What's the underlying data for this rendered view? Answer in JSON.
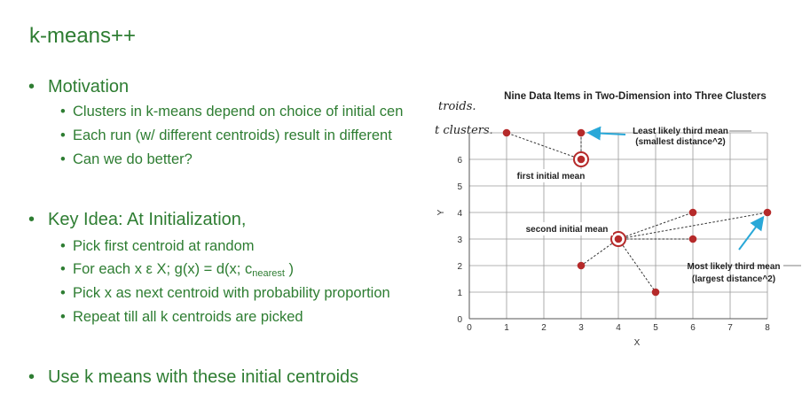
{
  "slide": {
    "title": "k-means++",
    "bullets": {
      "motivation": "Motivation",
      "m1": "Clusters in k-means depend on choice of initial cen",
      "m2": "Each run (w/ different centroids) result in different",
      "m3": "Can we do better?",
      "key_idea": "Key Idea: At Initialization,",
      "k1": "Pick first centroid at random",
      "k2_pre": "For each x ε X; g(x) = d(x; c",
      "k2_sub": "nearest",
      "k2_post": " )",
      "k3": "Pick x as next centroid with probability proportion",
      "k4": "Repeat till all k centroids are picked",
      "use": "Use k means with these initial centroids"
    },
    "handwriting": {
      "h1": "troids.",
      "h2": "t clusters."
    }
  },
  "chart_data": {
    "type": "scatter",
    "title": "Nine Data Items in Two-Dimension into Three Clusters",
    "xlabel": "X",
    "ylabel": "Y",
    "xlim": [
      0,
      8
    ],
    "ylim": [
      0,
      7
    ],
    "xticks": [
      0,
      1,
      2,
      3,
      4,
      5,
      6,
      7,
      8
    ],
    "yticks": [
      0,
      1,
      2,
      3,
      4,
      5,
      6
    ],
    "grid": true,
    "points": [
      {
        "x": 1,
        "y": 7
      },
      {
        "x": 3,
        "y": 7
      },
      {
        "x": 3,
        "y": 6
      },
      {
        "x": 3,
        "y": 2
      },
      {
        "x": 4,
        "y": 3
      },
      {
        "x": 5,
        "y": 1
      },
      {
        "x": 6,
        "y": 4
      },
      {
        "x": 6,
        "y": 3
      },
      {
        "x": 8,
        "y": 4
      }
    ],
    "initial_means": [
      {
        "x": 3,
        "y": 6,
        "label": "first initial mean"
      },
      {
        "x": 4,
        "y": 3,
        "label": "second initial mean"
      }
    ],
    "distance_lines": [
      {
        "from": [
          3,
          6
        ],
        "to": [
          1,
          7
        ]
      },
      {
        "from": [
          3,
          6
        ],
        "to": [
          3,
          7
        ]
      },
      {
        "from": [
          4,
          3
        ],
        "to": [
          3,
          2
        ]
      },
      {
        "from": [
          4,
          3
        ],
        "to": [
          5,
          1
        ]
      },
      {
        "from": [
          4,
          3
        ],
        "to": [
          6,
          4
        ]
      },
      {
        "from": [
          4,
          3
        ],
        "to": [
          6,
          3
        ]
      },
      {
        "from": [
          4,
          3
        ],
        "to": [
          8,
          4
        ]
      }
    ],
    "annotations": [
      {
        "lines": [
          "Least likely third mean",
          "(smallest distance^2)"
        ],
        "point": [
          3,
          7
        ]
      },
      {
        "lines": [
          "Most likely third mean",
          "(largest distance^2)"
        ],
        "point": [
          8,
          4
        ]
      }
    ],
    "colors": {
      "point": "#b52a2a",
      "arrow": "#29a8d8",
      "grid": "#9a9a9a"
    }
  }
}
